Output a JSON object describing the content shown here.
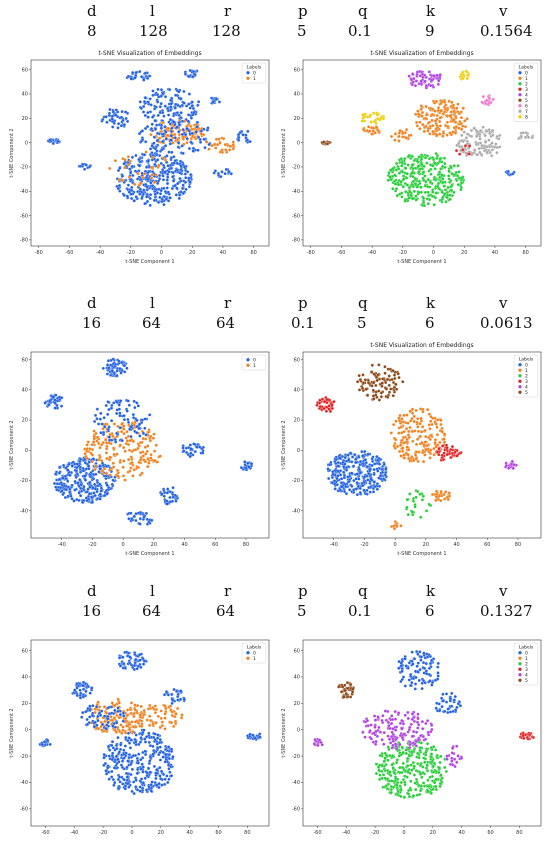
{
  "params_header": [
    "d",
    "l",
    "r",
    "p",
    "q",
    "k",
    "v"
  ],
  "rows": [
    {
      "values": [
        "8",
        "128",
        "128",
        "5",
        "0.1",
        "9",
        "0.1564"
      ]
    },
    {
      "values": [
        "16",
        "64",
        "64",
        "0.1",
        "5",
        "6",
        "0.0613"
      ]
    },
    {
      "values": [
        "16",
        "64",
        "64",
        "5",
        "0.1",
        "6",
        "0.1327"
      ]
    }
  ],
  "palette": [
    "#1f5fe0",
    "#f07f1a",
    "#22cc33",
    "#e02020",
    "#b040e0",
    "#8b4513",
    "#ee77cc",
    "#aaaaaa",
    "#eecc00"
  ],
  "chart_data": [
    {
      "type": "scatter",
      "title": "t-SNE Visualization of Embeddings",
      "xlabel": "t-SNE Component 1",
      "ylabel": "t-SNE Component 2",
      "xlim": [
        -85,
        70
      ],
      "ylim": [
        -85,
        68
      ],
      "xticks": [
        -80,
        -60,
        -40,
        -20,
        0,
        20,
        40,
        60
      ],
      "yticks": [
        -80,
        -60,
        -40,
        -20,
        0,
        20,
        40,
        60
      ],
      "legend": {
        "title": "Labels",
        "entries": [
          "0",
          "1"
        ],
        "placement": "top-right"
      },
      "clusters": [
        {
          "l": 0,
          "cx": -5,
          "cy": -30,
          "rx": 25,
          "ry": 22,
          "n": 340
        },
        {
          "l": 0,
          "cx": 5,
          "cy": 30,
          "rx": 20,
          "ry": 15,
          "n": 140
        },
        {
          "l": 1,
          "cx": 10,
          "cy": 8,
          "rx": 18,
          "ry": 10,
          "n": 110
        },
        {
          "l": 0,
          "cx": 10,
          "cy": 5,
          "rx": 25,
          "ry": 14,
          "n": 120
        },
        {
          "l": 0,
          "cx": -30,
          "cy": 20,
          "rx": 10,
          "ry": 8,
          "n": 40
        },
        {
          "l": 0,
          "cx": 20,
          "cy": 57,
          "rx": 5,
          "ry": 3,
          "n": 25
        },
        {
          "l": 0,
          "cx": -15,
          "cy": 55,
          "rx": 8,
          "ry": 4,
          "n": 30
        },
        {
          "l": 0,
          "cx": 35,
          "cy": 35,
          "rx": 4,
          "ry": 3,
          "n": 15
        },
        {
          "l": 0,
          "cx": -70,
          "cy": 1,
          "rx": 4,
          "ry": 2,
          "n": 20
        },
        {
          "l": 0,
          "cx": 55,
          "cy": 5,
          "rx": 6,
          "ry": 5,
          "n": 20
        },
        {
          "l": 1,
          "cx": 40,
          "cy": -2,
          "rx": 12,
          "ry": 6,
          "n": 30
        },
        {
          "l": 0,
          "cx": 40,
          "cy": -25,
          "rx": 6,
          "ry": 4,
          "n": 15
        },
        {
          "l": 0,
          "cx": -50,
          "cy": -20,
          "rx": 4,
          "ry": 3,
          "n": 10
        },
        {
          "l": 1,
          "cx": -15,
          "cy": -20,
          "rx": 20,
          "ry": 15,
          "n": 30
        }
      ]
    },
    {
      "type": "scatter",
      "title": "t-SNE Visualization of Embeddings",
      "xlabel": "t-SNE Component 1",
      "ylabel": "t-SNE Component 2",
      "xlim": [
        -85,
        70
      ],
      "ylim": [
        -85,
        68
      ],
      "xticks": [
        -80,
        -60,
        -40,
        -20,
        0,
        20,
        40,
        60
      ],
      "yticks": [
        -80,
        -60,
        -40,
        -20,
        0,
        20,
        40,
        60
      ],
      "legend": {
        "title": "Labels",
        "entries": [
          "0",
          "1",
          "2",
          "3",
          "4",
          "5",
          "6",
          "7",
          "8"
        ],
        "placement": "top-right"
      },
      "clusters": [
        {
          "l": 2,
          "cx": -5,
          "cy": -30,
          "rx": 25,
          "ry": 22,
          "n": 340
        },
        {
          "l": 1,
          "cx": 5,
          "cy": 20,
          "rx": 18,
          "ry": 15,
          "n": 160
        },
        {
          "l": 4,
          "cx": -5,
          "cy": 52,
          "rx": 12,
          "ry": 7,
          "n": 60
        },
        {
          "l": 8,
          "cx": 20,
          "cy": 55,
          "rx": 4,
          "ry": 4,
          "n": 20
        },
        {
          "l": 8,
          "cx": -40,
          "cy": 20,
          "rx": 8,
          "ry": 5,
          "n": 25
        },
        {
          "l": 7,
          "cx": 30,
          "cy": 0,
          "rx": 15,
          "ry": 13,
          "n": 120
        },
        {
          "l": 5,
          "cx": -70,
          "cy": 0,
          "rx": 3,
          "ry": 2,
          "n": 20
        },
        {
          "l": 1,
          "cx": -40,
          "cy": 10,
          "rx": 6,
          "ry": 4,
          "n": 20
        },
        {
          "l": 0,
          "cx": 50,
          "cy": -25,
          "rx": 3,
          "ry": 2,
          "n": 10
        },
        {
          "l": 7,
          "cx": 60,
          "cy": 5,
          "rx": 5,
          "ry": 4,
          "n": 15
        },
        {
          "l": 6,
          "cx": 35,
          "cy": 35,
          "rx": 4,
          "ry": 4,
          "n": 15
        },
        {
          "l": 3,
          "cx": 20,
          "cy": -5,
          "rx": 6,
          "ry": 6,
          "n": 8
        },
        {
          "l": 1,
          "cx": -20,
          "cy": 5,
          "rx": 8,
          "ry": 6,
          "n": 20
        }
      ]
    },
    {
      "type": "scatter",
      "title": "",
      "xlabel": "t-SNE Component 1",
      "ylabel": "t-SNE Component 2",
      "xlim": [
        -60,
        95
      ],
      "ylim": [
        -58,
        65
      ],
      "xticks": [
        -40,
        -20,
        0,
        20,
        40,
        60,
        80
      ],
      "yticks": [
        -40,
        -20,
        0,
        20,
        40,
        60
      ],
      "legend": {
        "title": "",
        "entries": [
          "0",
          "1"
        ],
        "placement": "top-right"
      },
      "clusters": [
        {
          "l": 0,
          "cx": -25,
          "cy": -20,
          "rx": 20,
          "ry": 15,
          "n": 300
        },
        {
          "l": 1,
          "cx": 0,
          "cy": 0,
          "rx": 25,
          "ry": 20,
          "n": 200
        },
        {
          "l": 0,
          "cx": -45,
          "cy": 32,
          "rx": 6,
          "ry": 5,
          "n": 40
        },
        {
          "l": 0,
          "cx": -5,
          "cy": 55,
          "rx": 8,
          "ry": 6,
          "n": 60
        },
        {
          "l": 0,
          "cx": 30,
          "cy": -30,
          "rx": 6,
          "ry": 6,
          "n": 40
        },
        {
          "l": 0,
          "cx": 45,
          "cy": 0,
          "rx": 8,
          "ry": 5,
          "n": 30
        },
        {
          "l": 0,
          "cx": 80,
          "cy": -10,
          "rx": 4,
          "ry": 3,
          "n": 20
        },
        {
          "l": 0,
          "cx": 0,
          "cy": 20,
          "rx": 20,
          "ry": 15,
          "n": 90
        },
        {
          "l": 0,
          "cx": 10,
          "cy": -45,
          "rx": 10,
          "ry": 5,
          "n": 30
        }
      ]
    },
    {
      "type": "scatter",
      "title": "t-SNE Visualization of Embeddings",
      "xlabel": "t-SNE Component 1",
      "ylabel": "t-SNE Component 2",
      "xlim": [
        -60,
        95
      ],
      "ylim": [
        -58,
        65
      ],
      "xticks": [
        -40,
        -20,
        0,
        20,
        40,
        60,
        80
      ],
      "yticks": [
        -40,
        -20,
        0,
        20,
        40,
        60
      ],
      "legend": {
        "title": "Labels",
        "entries": [
          "0",
          "1",
          "2",
          "3",
          "4",
          "5"
        ],
        "placement": "top-right"
      },
      "clusters": [
        {
          "l": 0,
          "cx": -25,
          "cy": -15,
          "rx": 20,
          "ry": 15,
          "n": 300
        },
        {
          "l": 1,
          "cx": 15,
          "cy": 10,
          "rx": 18,
          "ry": 18,
          "n": 180
        },
        {
          "l": 5,
          "cx": -10,
          "cy": 45,
          "rx": 15,
          "ry": 12,
          "n": 100
        },
        {
          "l": 3,
          "cx": -45,
          "cy": 30,
          "rx": 6,
          "ry": 5,
          "n": 40
        },
        {
          "l": 3,
          "cx": 35,
          "cy": -2,
          "rx": 8,
          "ry": 6,
          "n": 50
        },
        {
          "l": 4,
          "cx": 75,
          "cy": -10,
          "rx": 4,
          "ry": 3,
          "n": 20
        },
        {
          "l": 1,
          "cx": 30,
          "cy": -30,
          "rx": 6,
          "ry": 4,
          "n": 30
        },
        {
          "l": 2,
          "cx": 15,
          "cy": -35,
          "rx": 10,
          "ry": 10,
          "n": 25
        },
        {
          "l": 1,
          "cx": 0,
          "cy": -50,
          "rx": 4,
          "ry": 3,
          "n": 10
        }
      ]
    },
    {
      "type": "scatter",
      "title": "",
      "xlabel": "",
      "ylabel": "t-SNE Component 2",
      "xlim": [
        -70,
        95
      ],
      "ylim": [
        -73,
        68
      ],
      "xticks": [
        -60,
        -40,
        -20,
        0,
        20,
        40,
        60,
        80
      ],
      "yticks": [
        -60,
        -40,
        -20,
        0,
        20,
        40,
        60
      ],
      "legend": {
        "title": "Labels",
        "entries": [
          "0",
          "1"
        ],
        "placement": "top-right"
      },
      "clusters": [
        {
          "l": 0,
          "cx": 5,
          "cy": -25,
          "rx": 25,
          "ry": 25,
          "n": 330
        },
        {
          "l": 0,
          "cx": 0,
          "cy": 52,
          "rx": 10,
          "ry": 8,
          "n": 60
        },
        {
          "l": 0,
          "cx": -35,
          "cy": 30,
          "rx": 8,
          "ry": 6,
          "n": 40
        },
        {
          "l": 1,
          "cx": -10,
          "cy": 10,
          "rx": 20,
          "ry": 15,
          "n": 150
        },
        {
          "l": 0,
          "cx": -20,
          "cy": 10,
          "rx": 15,
          "ry": 10,
          "n": 60
        },
        {
          "l": 0,
          "cx": -60,
          "cy": -10,
          "rx": 4,
          "ry": 3,
          "n": 20
        },
        {
          "l": 0,
          "cx": 85,
          "cy": -5,
          "rx": 5,
          "ry": 3,
          "n": 20
        },
        {
          "l": 0,
          "cx": 30,
          "cy": 25,
          "rx": 8,
          "ry": 6,
          "n": 30
        },
        {
          "l": 1,
          "cx": 20,
          "cy": 10,
          "rx": 15,
          "ry": 10,
          "n": 60
        }
      ]
    },
    {
      "type": "scatter",
      "title": "",
      "xlabel": "",
      "ylabel": "t-SNE Component 2",
      "xlim": [
        -70,
        95
      ],
      "ylim": [
        -73,
        68
      ],
      "xticks": [
        -60,
        -40,
        -20,
        0,
        20,
        40,
        60,
        80
      ],
      "yticks": [
        -60,
        -40,
        -20,
        0,
        20,
        40,
        60
      ],
      "legend": {
        "title": "Labels",
        "entries": [
          "0",
          "1",
          "2",
          "3",
          "4",
          "5"
        ],
        "placement": "top-right"
      },
      "clusters": [
        {
          "l": 2,
          "cx": 5,
          "cy": -30,
          "rx": 25,
          "ry": 22,
          "n": 320
        },
        {
          "l": 4,
          "cx": -5,
          "cy": 0,
          "rx": 25,
          "ry": 15,
          "n": 150
        },
        {
          "l": 0,
          "cx": 10,
          "cy": 45,
          "rx": 15,
          "ry": 15,
          "n": 100
        },
        {
          "l": 5,
          "cx": -40,
          "cy": 30,
          "rx": 6,
          "ry": 6,
          "n": 40
        },
        {
          "l": 3,
          "cx": 85,
          "cy": -5,
          "rx": 5,
          "ry": 3,
          "n": 25
        },
        {
          "l": 4,
          "cx": -60,
          "cy": -10,
          "rx": 4,
          "ry": 3,
          "n": 15
        },
        {
          "l": 0,
          "cx": 30,
          "cy": 20,
          "rx": 10,
          "ry": 8,
          "n": 40
        },
        {
          "l": 4,
          "cx": 35,
          "cy": -20,
          "rx": 6,
          "ry": 8,
          "n": 20
        }
      ]
    }
  ]
}
